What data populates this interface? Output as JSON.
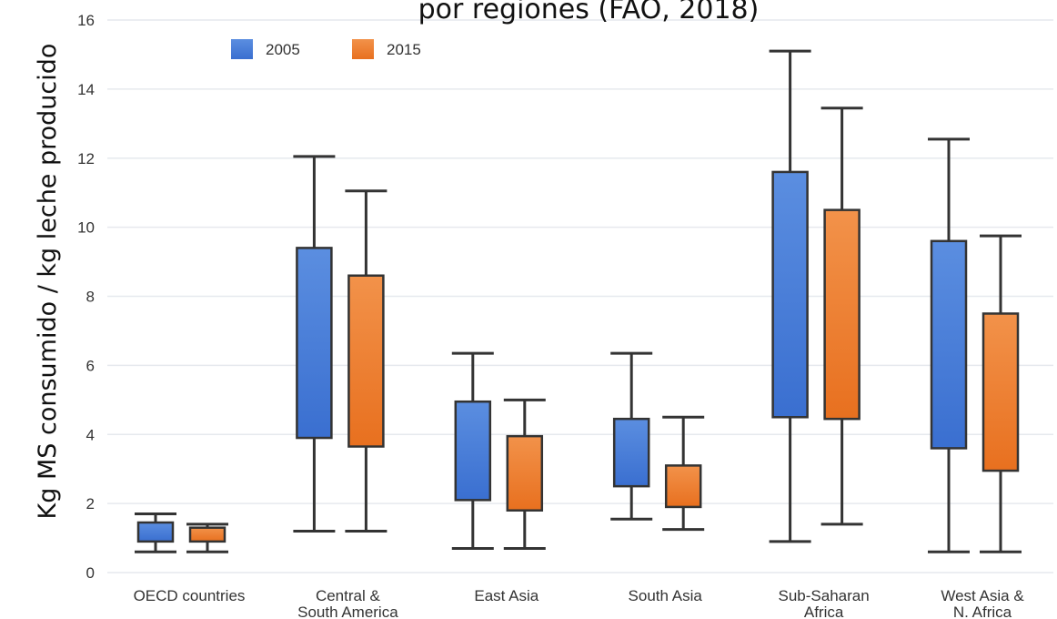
{
  "chart_data": {
    "type": "boxplot",
    "title": "por regiones (FAO, 2018)",
    "ylabel": "Kg MS consumido / kg leche producido",
    "xlabel": "",
    "ylim": [
      0,
      16
    ],
    "yticks": [
      0,
      2,
      4,
      6,
      8,
      10,
      12,
      14,
      16
    ],
    "grid": true,
    "legend_position": "top-left",
    "categories": [
      [
        "OECD countries"
      ],
      [
        "Central &",
        "South America"
      ],
      [
        "East Asia"
      ],
      [
        "South Asia"
      ],
      [
        "Sub-Saharan",
        "Africa"
      ],
      [
        "West Asia &",
        "N. Africa"
      ]
    ],
    "series": [
      {
        "name": "2005",
        "color": "#3a6fd0",
        "color_light": "#5b8ee0",
        "boxes": [
          {
            "min": 0.6,
            "q1": 0.9,
            "q3": 1.45,
            "max": 1.7
          },
          {
            "min": 1.2,
            "q1": 3.9,
            "q3": 9.4,
            "max": 12.05
          },
          {
            "min": 0.7,
            "q1": 2.1,
            "q3": 4.95,
            "max": 6.35
          },
          {
            "min": 1.55,
            "q1": 2.5,
            "q3": 4.45,
            "max": 6.35
          },
          {
            "min": 0.9,
            "q1": 4.5,
            "q3": 11.6,
            "max": 15.1
          },
          {
            "min": 0.6,
            "q1": 3.6,
            "q3": 9.6,
            "max": 12.55
          }
        ]
      },
      {
        "name": "2015",
        "color": "#e8701f",
        "color_light": "#f2924a",
        "boxes": [
          {
            "min": 0.6,
            "q1": 0.9,
            "q3": 1.3,
            "max": 1.4
          },
          {
            "min": 1.2,
            "q1": 3.65,
            "q3": 8.6,
            "max": 11.05
          },
          {
            "min": 0.7,
            "q1": 1.8,
            "q3": 3.95,
            "max": 5.0
          },
          {
            "min": 1.25,
            "q1": 1.9,
            "q3": 3.1,
            "max": 4.5
          },
          {
            "min": 1.4,
            "q1": 4.45,
            "q3": 10.5,
            "max": 13.45
          },
          {
            "min": 0.6,
            "q1": 2.95,
            "q3": 7.5,
            "max": 9.75
          }
        ]
      }
    ]
  }
}
